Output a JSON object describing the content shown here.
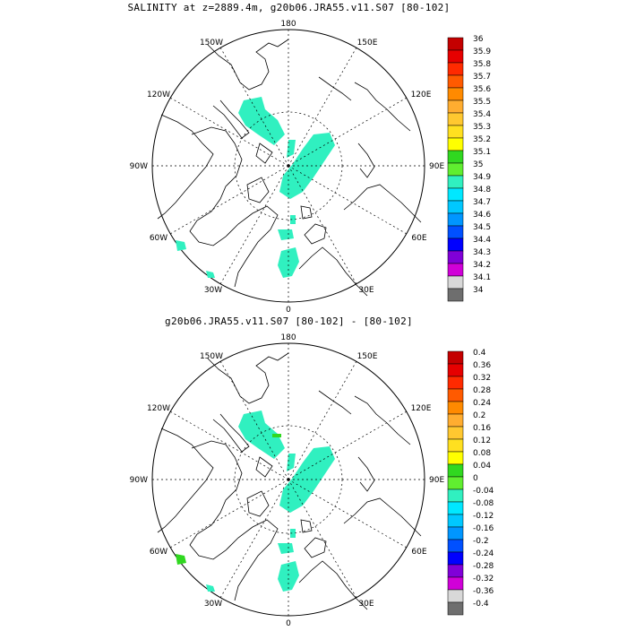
{
  "maps": [
    {
      "title": "SALINITY at z=2889.4m, g20b06.JRA55.v11.S07 [80-102]",
      "lon_labels": {
        "top": "180",
        "bottom": "0",
        "left": "90W",
        "right": "90E",
        "upper_left": "150W",
        "upper_right": "150E",
        "mid_left": "120W",
        "mid_right": "120E",
        "lower_left": "60W",
        "lower_right": "60E",
        "bottom_left": "30W",
        "bottom_right": "30E"
      },
      "colorbar": {
        "labels": [
          "36",
          "35.9",
          "35.8",
          "35.7",
          "35.6",
          "35.5",
          "35.4",
          "35.3",
          "35.2",
          "35.1",
          "35",
          "34.9",
          "34.8",
          "34.7",
          "34.6",
          "34.5",
          "34.4",
          "34.3",
          "34.2",
          "34.1",
          "34"
        ],
        "colors": [
          "#c40000",
          "#e60000",
          "#ff2a00",
          "#ff5a00",
          "#ff8a00",
          "#ffad30",
          "#ffc830",
          "#ffe020",
          "#ffff00",
          "#30d820",
          "#60ee30",
          "#30f0c0",
          "#00e8ff",
          "#00c8ff",
          "#0096ff",
          "#0050ff",
          "#0000ff",
          "#8000d8",
          "#d000d8",
          "#d8d8d8",
          "#6e6e6e"
        ]
      }
    },
    {
      "title": "g20b06.JRA55.v11.S07 [80-102] -  [80-102]",
      "lon_labels": {
        "top": "180",
        "bottom": "0",
        "left": "90W",
        "right": "90E",
        "upper_left": "150W",
        "upper_right": "150E",
        "mid_left": "120W",
        "mid_right": "120E",
        "lower_left": "60W",
        "lower_right": "60E",
        "bottom_left": "30W",
        "bottom_right": "30E"
      },
      "colorbar": {
        "labels": [
          "0.4",
          "0.36",
          "0.32",
          "0.28",
          "0.24",
          "0.2",
          "0.16",
          "0.12",
          "0.08",
          "0.04",
          "0",
          "-0.04",
          "-0.08",
          "-0.12",
          "-0.16",
          "-0.2",
          "-0.24",
          "-0.28",
          "-0.32",
          "-0.36",
          "-0.4"
        ],
        "colors": [
          "#c40000",
          "#e60000",
          "#ff2a00",
          "#ff5a00",
          "#ff8a00",
          "#ffad30",
          "#ffc830",
          "#ffe020",
          "#ffff00",
          "#30d820",
          "#60ee30",
          "#30f0c0",
          "#00e8ff",
          "#00c8ff",
          "#0096ff",
          "#0050ff",
          "#0000ff",
          "#8000d8",
          "#d000d8",
          "#d8d8d8",
          "#6e6e6e"
        ]
      }
    }
  ],
  "field_color": "#30f0c0",
  "land_color": "#ffffff",
  "coast_color": "#000000"
}
